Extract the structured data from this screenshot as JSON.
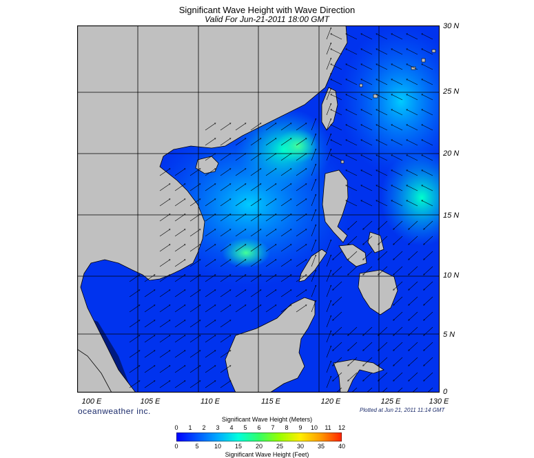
{
  "header": {
    "title": "Significant Wave Height with Wave Direction",
    "subtitle": "Valid For Jun-21-2011 18:00 GMT"
  },
  "map": {
    "region": "South China Sea",
    "lat_labels": [
      "30 N",
      "25 N",
      "20 N",
      "15 N",
      "10 N",
      "5 N",
      "0"
    ],
    "lon_labels": [
      "100 E",
      "105 E",
      "110 E",
      "115 E",
      "120 E",
      "125 E",
      "130 E"
    ],
    "colors": {
      "land": "#c0c0c0",
      "deep": "#001a80",
      "low": "#0033ff",
      "mid": "#00aaff",
      "high": "#00ffcc",
      "peak": "#66ff66"
    }
  },
  "footer": {
    "brand": "oceanweather inc.",
    "plotted": "Plotted at Jun 21, 2011 11:14 GMT"
  },
  "scale": {
    "meters_title": "Significant Wave Height (Meters)",
    "meters_ticks": [
      "0",
      "1",
      "2",
      "3",
      "4",
      "5",
      "6",
      "7",
      "8",
      "9",
      "10",
      "11",
      "12"
    ],
    "feet_title": "Significant Wave Height (Feet)",
    "feet_ticks": [
      "0",
      "5",
      "10",
      "15",
      "20",
      "25",
      "30",
      "35",
      "40"
    ],
    "gradient": [
      "#0000ff",
      "#0055ff",
      "#00aaff",
      "#00ffdd",
      "#33ff66",
      "#99ff00",
      "#ffee00",
      "#ff9900",
      "#ff2200"
    ]
  }
}
